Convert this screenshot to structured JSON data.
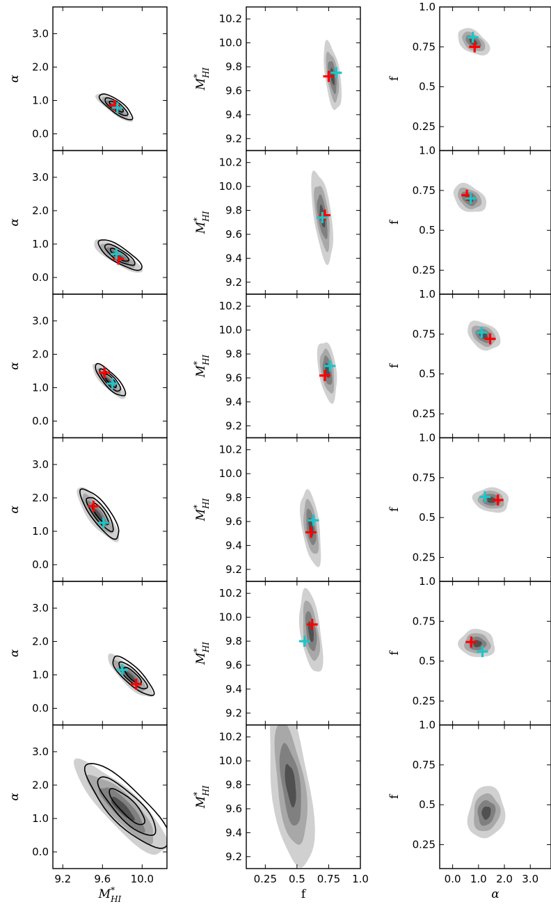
{
  "chart_data": [
    {
      "type": "grid-of-contour-plots",
      "layout": {
        "rows": 6,
        "columns": 3
      },
      "columns": [
        {
          "id": "mhi-alpha",
          "xlabel": "M*HI",
          "ylabel": "α",
          "xlim": [
            9.1,
            10.25
          ],
          "ylim": [
            -0.5,
            3.8
          ],
          "xticks": [
            9.2,
            9.6,
            10.0
          ],
          "xticklabels": [
            "9.2",
            "9.6",
            "10.0"
          ],
          "yticks": [
            0.0,
            1.0,
            2.0,
            3.0
          ],
          "yticklabels": [
            "0.0",
            "1.0",
            "2.0",
            "3.0"
          ]
        },
        {
          "id": "f-mhi",
          "xlabel": "f",
          "ylabel": "M*HI",
          "xlim": [
            0.1,
            1.0
          ],
          "ylim": [
            9.1,
            10.3
          ],
          "xticks": [
            0.25,
            0.5,
            0.75,
            1.0
          ],
          "xticklabels": [
            "0.25",
            "0.5",
            "0.75",
            "1.0"
          ],
          "yticks": [
            9.2,
            9.4,
            9.6,
            9.8,
            10.0,
            10.2
          ],
          "yticklabels": [
            "9.2",
            "9.4",
            "9.6",
            "9.8",
            "10.0",
            "10.2"
          ]
        },
        {
          "id": "alpha-f",
          "xlabel": "α",
          "ylabel": "f",
          "xlim": [
            -0.5,
            3.8
          ],
          "ylim": [
            0.1,
            1.0
          ],
          "xticks": [
            0.0,
            1.0,
            2.0,
            3.0
          ],
          "xticklabels": [
            "0.0",
            "1.0",
            "2.0",
            "3.0"
          ],
          "yticks": [
            0.25,
            0.5,
            0.75,
            1.0
          ],
          "yticklabels": [
            "0.25",
            "0.5",
            "0.75",
            "1.0"
          ]
        }
      ],
      "row_estimates": [
        {
          "mhi_red": 9.72,
          "alpha_red": 0.85,
          "f_red": 0.75,
          "mhi_cyan": 9.75,
          "alpha_cyan": 0.78,
          "f_cyan": 0.81
        },
        {
          "mhi_red": 9.76,
          "alpha_red": 0.55,
          "f_red": 0.72,
          "mhi_cyan": 9.74,
          "alpha_cyan": 0.7,
          "f_cyan": 0.7
        },
        {
          "mhi_red": 9.62,
          "alpha_red": 1.45,
          "f_red": 0.72,
          "mhi_cyan": 9.7,
          "alpha_cyan": 1.12,
          "f_cyan": 0.76
        },
        {
          "mhi_red": 9.51,
          "alpha_red": 1.75,
          "f_red": 0.61,
          "mhi_cyan": 9.61,
          "alpha_cyan": 1.25,
          "f_cyan": 0.63
        },
        {
          "mhi_red": 9.94,
          "alpha_red": 0.72,
          "f_red": 0.62,
          "mhi_cyan": 9.8,
          "alpha_cyan": 1.15,
          "f_cyan": 0.56
        },
        {
          "mhi_red": null,
          "alpha_red": null,
          "f_red": null,
          "mhi_cyan": null,
          "alpha_cyan": null,
          "f_cyan": null
        }
      ],
      "contour_rows": [
        {
          "center_mhi": 9.72,
          "center_alpha": 0.8,
          "center_f": 0.78,
          "alpha_slope": -2.2,
          "spread_mhi": 0.18,
          "spread_f": 0.06,
          "line_contours": true
        },
        {
          "center_mhi": 9.75,
          "center_alpha": 0.65,
          "center_f": 0.7,
          "alpha_slope": -1.9,
          "spread_mhi": 0.24,
          "spread_f": 0.07,
          "line_contours": true
        },
        {
          "center_mhi": 9.66,
          "center_alpha": 1.2,
          "center_f": 0.74,
          "alpha_slope": -3.2,
          "spread_mhi": 0.16,
          "spread_f": 0.07,
          "line_contours": true
        },
        {
          "center_mhi": 9.55,
          "center_alpha": 1.5,
          "center_f": 0.61,
          "alpha_slope": -4.0,
          "spread_mhi": 0.2,
          "spread_f": 0.07,
          "line_contours": true
        },
        {
          "center_mhi": 9.88,
          "center_alpha": 0.95,
          "center_f": 0.61,
          "alpha_slope": -2.8,
          "spread_mhi": 0.22,
          "spread_f": 0.08,
          "line_contours": true
        },
        {
          "center_mhi": 9.8,
          "center_alpha": 1.3,
          "center_f": 0.45,
          "alpha_slope": -3.0,
          "spread_mhi": 0.45,
          "spread_f": 0.15,
          "line_contours": true
        }
      ],
      "colors": {
        "fill_levels": [
          "#d0d0d0",
          "#a8a8a8",
          "#808080",
          "#505050"
        ],
        "line_contour": "#000000",
        "red_marker": "#ff0000",
        "cyan_marker": "#1cc5c8"
      }
    }
  ]
}
